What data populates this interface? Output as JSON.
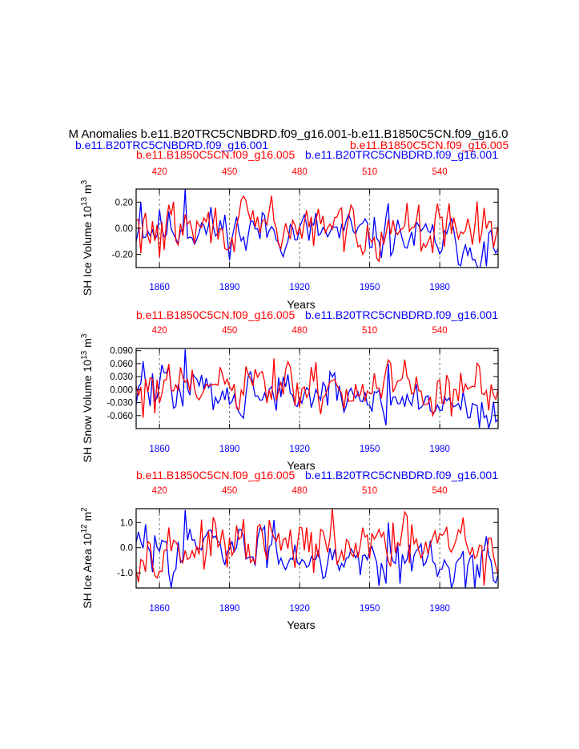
{
  "page": {
    "main_title": "M Anomalies b.e11.B20TRC5CNBDRD.f09_g16.001-b.e11.B1850C5CN.f09_g16.0",
    "header_run_blue": "b.e11.B20TRC5CNBDRD.f09_g16.001",
    "header_run_red": "b.e11.B1850C5CN.f09_g16.005"
  },
  "colors": {
    "blue": "#0000ff",
    "red": "#ff0000",
    "black": "#000000",
    "grid": "#555555"
  },
  "chart_data": [
    {
      "type": "line",
      "ylabel_base": "SH Ice Volume 10",
      "ylabel_exp1": "13",
      "ylabel_unit": " m",
      "ylabel_exp2": "3",
      "xlabel": "Years",
      "top_label_red": "b.e11.B1850C5CN.f09_g16.005",
      "top_label_blue": "b.e11.B20TRC5CNBDRD.f09_g16.001",
      "ylim": [
        -0.3,
        0.3
      ],
      "yticks": [
        -0.2,
        0.0,
        0.2
      ],
      "ytick_labels": [
        "-0.20",
        "0.00",
        "0.20"
      ],
      "xlim_bottom": [
        1850,
        2005
      ],
      "xticks_bottom": [
        1860,
        1890,
        1920,
        1950,
        1980
      ],
      "xticks_top": [
        420,
        450,
        480,
        510,
        540
      ],
      "series": [
        {
          "name": "b.e11.B20TRC5CNBDRD.f09_g16.001",
          "color": "blue",
          "x_start": 1850,
          "amplitude": 0.08,
          "trend_end": -0.14,
          "seed": 11,
          "spikes": [
            [
              1852,
              0.2
            ],
            [
              1871,
              0.3
            ],
            [
              1897,
              -0.17
            ],
            [
              1958,
              0.19
            ],
            [
              2000,
              -0.29
            ],
            [
              2004,
              -0.19
            ]
          ]
        },
        {
          "name": "b.e11.B1850C5CN.f09_g16.005",
          "color": "red",
          "x_start": 1850,
          "amplitude": 0.09,
          "trend_end": 0.0,
          "seed": 29,
          "spikes": [
            [
              1852,
              -0.19
            ],
            [
              1860,
              -0.22
            ],
            [
              1908,
              0.25
            ],
            [
              1971,
              0.18
            ],
            [
              1977,
              -0.19
            ]
          ]
        }
      ]
    },
    {
      "type": "line",
      "ylabel_base": "SH Snow Volume 10",
      "ylabel_exp1": "13",
      "ylabel_unit": " m",
      "ylabel_exp2": "3",
      "xlabel": "Years",
      "top_label_red": "b.e11.B1850C5CN.f09_g16.005",
      "top_label_blue": "b.e11.B20TRC5CNBDRD.f09_g16.001",
      "ylim": [
        -0.09,
        0.095
      ],
      "yticks": [
        -0.06,
        -0.03,
        0.0,
        0.03,
        0.06,
        0.09
      ],
      "ytick_labels": [
        "-0.060",
        "-0.030",
        "0.000",
        "0.030",
        "0.060",
        "0.090"
      ],
      "xlim_bottom": [
        1850,
        2005
      ],
      "xticks_bottom": [
        1860,
        1890,
        1920,
        1950,
        1980
      ],
      "xticks_top": [
        420,
        450,
        480,
        510,
        540
      ],
      "series": [
        {
          "name": "b.e11.B20TRC5CNBDRD.f09_g16.001",
          "color": "blue",
          "x_start": 1850,
          "amplitude": 0.025,
          "trend_end": -0.045,
          "seed": 47,
          "spikes": [
            [
              1853,
              0.065
            ],
            [
              1871,
              0.093
            ],
            [
              1895,
              -0.06
            ],
            [
              1958,
              0.06
            ],
            [
              1997,
              -0.088
            ]
          ]
        },
        {
          "name": "b.e11.B1850C5CN.f09_g16.005",
          "color": "red",
          "x_start": 1850,
          "amplitude": 0.028,
          "trend_end": 0.0,
          "seed": 61,
          "spikes": [
            [
              1853,
              -0.065
            ],
            [
              1858,
              -0.055
            ],
            [
              1909,
              0.072
            ],
            [
              1959,
              0.06
            ],
            [
              1977,
              -0.06
            ],
            [
              2001,
              -0.048
            ]
          ]
        }
      ]
    },
    {
      "type": "line",
      "ylabel_base": "SH Ice Area 10",
      "ylabel_exp1": "12",
      "ylabel_unit": " m",
      "ylabel_exp2": "2",
      "xlabel": "Years",
      "top_label_red": "b.e11.B1850C5CN.f09_g16.005",
      "top_label_blue": "b.e11.B20TRC5CNBDRD.f09_g16.001",
      "ylim": [
        -1.6,
        1.55
      ],
      "yticks": [
        -1.0,
        0.0,
        1.0
      ],
      "ytick_labels": [
        "-1.0",
        "0.0",
        "1.0"
      ],
      "xlim_bottom": [
        1850,
        2005
      ],
      "xticks_bottom": [
        1860,
        1890,
        1920,
        1950,
        1980
      ],
      "xticks_top": [
        420,
        450,
        480,
        510,
        540
      ],
      "series": [
        {
          "name": "b.e11.B20TRC5CNBDRD.f09_g16.001",
          "color": "blue",
          "x_start": 1850,
          "amplitude": 0.45,
          "trend_end": -0.8,
          "seed": 83,
          "spikes": [
            [
              1871,
              1.5
            ],
            [
              1909,
              1.1
            ],
            [
              1958,
              1.0
            ],
            [
              1995,
              -1.6
            ],
            [
              2004,
              -1.4
            ]
          ]
        },
        {
          "name": "b.e11.B1850C5CN.f09_g16.005",
          "color": "red",
          "x_start": 1850,
          "amplitude": 0.5,
          "trend_end": 0.0,
          "seed": 97,
          "spikes": [
            [
              1859,
              -1.2
            ],
            [
              1907,
              1.1
            ],
            [
              1960,
              1.0
            ],
            [
              1990,
              1.2
            ],
            [
              1999,
              -1.5
            ]
          ]
        }
      ]
    }
  ]
}
